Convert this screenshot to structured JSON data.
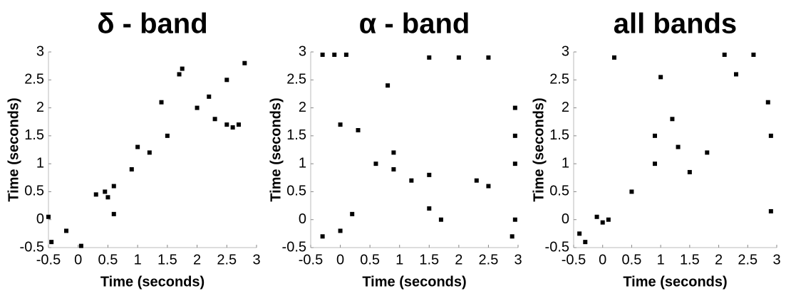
{
  "chart_data": [
    {
      "type": "scatter",
      "title": "δ - band",
      "xlabel": "Time (seconds)",
      "ylabel": "Time (seconds)",
      "xlim": [
        -0.5,
        3
      ],
      "ylim": [
        -0.5,
        3
      ],
      "xticks": [
        -0.5,
        0,
        0.5,
        1,
        1.5,
        2,
        2.5,
        3
      ],
      "yticks": [
        -0.5,
        0,
        0.5,
        1,
        1.5,
        2,
        2.5,
        3
      ],
      "color": "#000000",
      "x": [
        -0.45,
        -0.2,
        0.05,
        0.3,
        0.45,
        0.5,
        0.6,
        0.9,
        1.0,
        1.2,
        1.5,
        1.7,
        1.75,
        2.0,
        2.2,
        2.5,
        2.6,
        2.7,
        2.3,
        2.8,
        0.6,
        -0.5,
        1.4,
        2.5
      ],
      "y": [
        -0.4,
        -0.2,
        -0.47,
        0.45,
        0.5,
        0.4,
        0.6,
        0.9,
        1.3,
        1.2,
        1.5,
        2.6,
        2.7,
        2.0,
        2.2,
        1.7,
        1.65,
        1.7,
        1.8,
        2.8,
        0.1,
        0.05,
        2.1,
        2.5
      ]
    },
    {
      "type": "scatter",
      "title": "α - band",
      "xlabel": "Time (seconds)",
      "ylabel": "Time (seconds)",
      "xlim": [
        -0.5,
        3
      ],
      "ylim": [
        -0.5,
        3
      ],
      "xticks": [
        -0.5,
        0,
        0.5,
        1,
        1.5,
        2,
        2.5,
        3
      ],
      "yticks": [
        -0.5,
        0,
        0.5,
        1,
        1.5,
        2,
        2.5,
        3
      ],
      "color": "#000000",
      "x": [
        -0.3,
        -0.1,
        0.1,
        1.5,
        2.0,
        2.5,
        2.95,
        2.95,
        2.95,
        2.9,
        0.0,
        0.3,
        0.6,
        0.9,
        1.2,
        1.5,
        1.7,
        2.3,
        0.8,
        0.9,
        0.2,
        -0.3,
        1.5,
        2.5,
        0.0,
        2.95
      ],
      "y": [
        2.95,
        2.95,
        2.95,
        2.9,
        2.9,
        2.9,
        2.0,
        1.5,
        0.0,
        -0.3,
        1.7,
        1.6,
        1.0,
        0.9,
        0.7,
        0.2,
        0.0,
        0.7,
        2.4,
        1.2,
        0.1,
        -0.3,
        0.8,
        0.6,
        -0.2,
        1.0
      ]
    },
    {
      "type": "scatter",
      "title": "all bands",
      "xlabel": "Time (seconds)",
      "ylabel": "Time (seconds)",
      "xlim": [
        -0.5,
        3
      ],
      "ylim": [
        -0.5,
        3
      ],
      "xticks": [
        -0.5,
        0,
        0.5,
        1,
        1.5,
        2,
        2.5,
        3
      ],
      "yticks": [
        -0.5,
        0,
        0.5,
        1,
        1.5,
        2,
        2.5,
        3
      ],
      "color": "#000000",
      "x": [
        -0.4,
        -0.3,
        -0.1,
        0.0,
        0.1,
        0.5,
        0.9,
        1.3,
        1.5,
        1.8,
        2.1,
        2.3,
        2.6,
        2.85,
        2.9,
        1.2,
        2.9,
        1.0,
        0.9,
        0.2
      ],
      "y": [
        -0.25,
        -0.4,
        0.05,
        -0.05,
        0.0,
        0.5,
        1.5,
        1.3,
        0.85,
        1.2,
        2.95,
        2.6,
        2.95,
        2.1,
        1.5,
        1.8,
        0.15,
        2.55,
        1.0,
        2.9
      ]
    }
  ]
}
